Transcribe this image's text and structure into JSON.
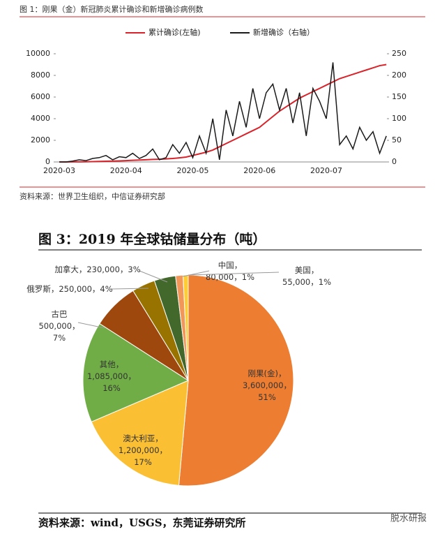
{
  "chart_data": [
    {
      "type": "line",
      "title": "图 1：刚果（金）新冠肺炎累计确诊和新增确诊病例数",
      "source": "资料来源：世界卫生组织，中信证券研究部",
      "categories": [
        "2020-03",
        null,
        null,
        null,
        null,
        null,
        null,
        null,
        null,
        null,
        "2020-04",
        null,
        null,
        null,
        null,
        null,
        null,
        null,
        null,
        null,
        "2020-05",
        null,
        null,
        null,
        null,
        null,
        null,
        null,
        null,
        null,
        "2020-06",
        null,
        null,
        null,
        null,
        null,
        null,
        null,
        null,
        null,
        "2020-07",
        null,
        null,
        null,
        null,
        null,
        null,
        null,
        null,
        null
      ],
      "series": [
        {
          "name": "累计确诊(左轴)",
          "color": "#d9232a",
          "values": [
            0,
            2,
            5,
            10,
            20,
            30,
            50,
            65,
            80,
            100,
            120,
            150,
            180,
            200,
            230,
            250,
            280,
            320,
            380,
            450,
            600,
            750,
            900,
            1100,
            1400,
            1700,
            2000,
            2300,
            2600,
            2900,
            3200,
            3700,
            4200,
            4700,
            5100,
            5500,
            5900,
            6200,
            6500,
            6800,
            7100,
            7400,
            7700,
            7900,
            8100,
            8300,
            8500,
            8700,
            8900,
            9000
          ]
        },
        {
          "name": "新增确诊（右轴）",
          "color": "#1a1a1a",
          "axis": "y2",
          "values": [
            0,
            0,
            2,
            5,
            3,
            8,
            10,
            15,
            5,
            12,
            10,
            20,
            8,
            15,
            30,
            5,
            10,
            40,
            20,
            45,
            10,
            60,
            20,
            100,
            5,
            120,
            60,
            140,
            80,
            170,
            100,
            160,
            180,
            120,
            170,
            90,
            160,
            60,
            170,
            140,
            100,
            230,
            40,
            60,
            30,
            80,
            50,
            70,
            20,
            60
          ]
        }
      ],
      "ylim": [
        0,
        10000
      ],
      "yticks": [
        0,
        2000,
        4000,
        6000,
        8000,
        10000
      ],
      "y2lim": [
        0,
        250
      ],
      "y2ticks": [
        0,
        50,
        100,
        150,
        200,
        250
      ],
      "legend": "top"
    },
    {
      "type": "pie",
      "title": "图 3：2019 年全球钴储量分布（吨）",
      "source": "资料来源：wind，USGS，东莞证券研究所",
      "separator": "，",
      "categories": [
        "刚果(金)",
        "澳大利亚",
        "其他",
        "古巴",
        "俄罗斯",
        "加拿大",
        "中国",
        "美国"
      ],
      "values": [
        3600000,
        1200000,
        1085000,
        500000,
        250000,
        230000,
        80000,
        55000
      ],
      "value_labels": [
        "3,600,000",
        "1,200,000",
        "1,085,000",
        "500,000",
        "250,000",
        "230,000",
        "80,000",
        "55,000"
      ],
      "percentages": [
        51,
        17,
        16,
        7,
        4,
        3,
        1,
        1
      ],
      "percentage_labels": [
        "51%",
        "17%",
        "16%",
        "7%",
        "4%",
        "3%",
        "1%",
        "1%"
      ],
      "colors": [
        "#ed7d31",
        "#fbbf34",
        "#70ad47",
        "#9e480e",
        "#997300",
        "#43682b",
        "#f1975a",
        "#ffcd33"
      ]
    }
  ],
  "watermark": "脱水研报"
}
